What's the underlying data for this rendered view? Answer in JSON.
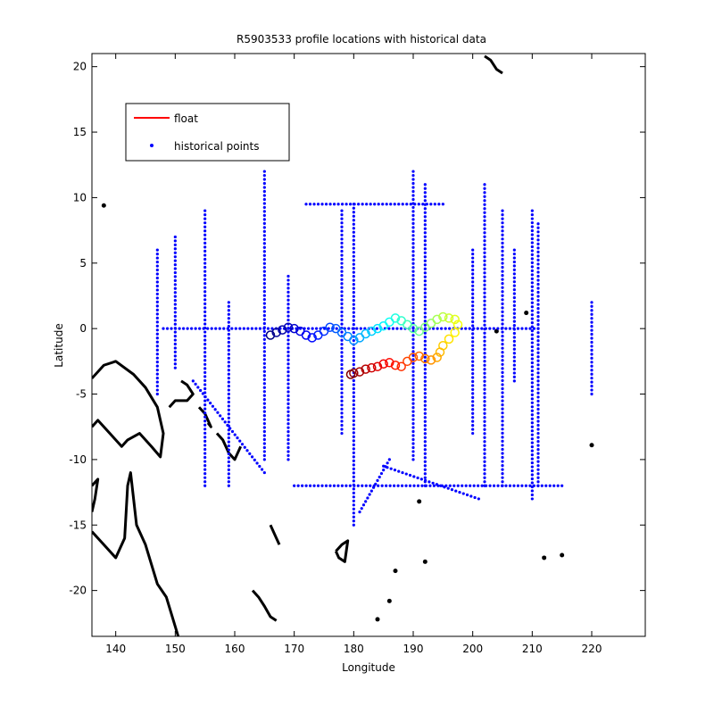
{
  "chart_data": {
    "type": "scatter",
    "title": "R5903533 profile locations with historical data",
    "xlabel": "Longitude",
    "ylabel": "Latitude",
    "xlim": [
      136,
      229
    ],
    "ylim": [
      -23.5,
      21
    ],
    "xticks": [
      140,
      150,
      160,
      170,
      180,
      190,
      200,
      210,
      220
    ],
    "yticks": [
      -20,
      -15,
      -10,
      -5,
      0,
      5,
      10,
      15,
      20
    ],
    "grid": false,
    "legend_position": "top-left",
    "legend": [
      {
        "label": "float",
        "marker": "line",
        "color": "#ff0000"
      },
      {
        "label": "historical points",
        "marker": "dot",
        "color": "#0000ff"
      }
    ],
    "series": [
      {
        "name": "float",
        "color_scale": "jet (dark blue to dark red along the track)",
        "x": [
          166,
          167,
          168,
          169,
          170,
          171,
          172,
          173,
          174,
          175,
          176,
          177,
          178,
          179,
          180,
          181,
          182,
          183,
          184,
          185,
          186,
          187,
          188,
          189,
          190,
          191,
          192,
          193,
          194,
          195,
          196,
          197,
          197.5,
          197,
          196,
          195,
          194.5,
          194,
          193,
          192,
          191,
          190,
          189,
          188,
          187,
          186,
          185,
          184,
          183,
          182,
          181,
          180,
          179.5
        ],
        "y": [
          -0.5,
          -0.3,
          -0.1,
          0.1,
          0.0,
          -0.2,
          -0.5,
          -0.7,
          -0.5,
          -0.2,
          0.1,
          0.0,
          -0.3,
          -0.6,
          -0.9,
          -0.7,
          -0.4,
          -0.2,
          0.0,
          0.2,
          0.5,
          0.8,
          0.6,
          0.3,
          0.0,
          -0.2,
          0.1,
          0.4,
          0.7,
          0.9,
          0.8,
          0.7,
          0.3,
          -0.3,
          -0.8,
          -1.3,
          -1.8,
          -2.2,
          -2.4,
          -2.3,
          -2.1,
          -2.2,
          -2.5,
          -2.9,
          -2.8,
          -2.6,
          -2.7,
          -2.9,
          -3.0,
          -3.1,
          -3.3,
          -3.4,
          -3.5
        ]
      },
      {
        "name": "historical points",
        "color": "#0000ff",
        "tracks": [
          {
            "x": [
              148,
              211
            ],
            "y": [
              0,
              0
            ]
          },
          {
            "x": [
              172,
              195
            ],
            "y": [
              9.5,
              9.5
            ]
          },
          {
            "x": [
              180,
              180
            ],
            "y": [
              -15,
              9.5
            ]
          },
          {
            "x": [
              165,
              165
            ],
            "y": [
              -10,
              12
            ]
          },
          {
            "x": [
              190,
              190
            ],
            "y": [
              -10,
              12
            ]
          },
          {
            "x": [
              210,
              210
            ],
            "y": [
              -13,
              9
            ]
          },
          {
            "x": [
              205,
              205
            ],
            "y": [
              -12,
              9
            ]
          },
          {
            "x": [
              155,
              155
            ],
            "y": [
              -12,
              9
            ]
          },
          {
            "x": [
              178,
              178
            ],
            "y": [
              -8,
              9
            ]
          },
          {
            "x": [
              192,
              192
            ],
            "y": [
              -12,
              11
            ]
          },
          {
            "x": [
              202,
              202
            ],
            "y": [
              -12,
              11
            ]
          },
          {
            "x": [
              200,
              200
            ],
            "y": [
              -8,
              6
            ]
          },
          {
            "x": [
              207,
              207
            ],
            "y": [
              -4,
              6
            ]
          },
          {
            "x": [
              211,
              211
            ],
            "y": [
              -12,
              8
            ]
          },
          {
            "x": [
              147,
              147
            ],
            "y": [
              -5,
              6
            ]
          },
          {
            "x": [
              150,
              150
            ],
            "y": [
              -3,
              7
            ]
          },
          {
            "x": [
              159,
              159
            ],
            "y": [
              -12,
              2
            ]
          },
          {
            "x": [
              169,
              169
            ],
            "y": [
              -10,
              4
            ]
          },
          {
            "x": [
              220,
              220
            ],
            "y": [
              -5,
              2
            ]
          },
          {
            "x": [
              170,
              215
            ],
            "y": [
              -12,
              -12
            ]
          },
          {
            "x": [
              185,
              201
            ],
            "y": [
              -10.5,
              -13
            ]
          },
          {
            "x": [
              181,
              186
            ],
            "y": [
              -14,
              -10
            ]
          },
          {
            "x": [
              153,
              165
            ],
            "y": [
              -4,
              -11
            ]
          }
        ]
      }
    ],
    "coastline_color": "#000000"
  }
}
